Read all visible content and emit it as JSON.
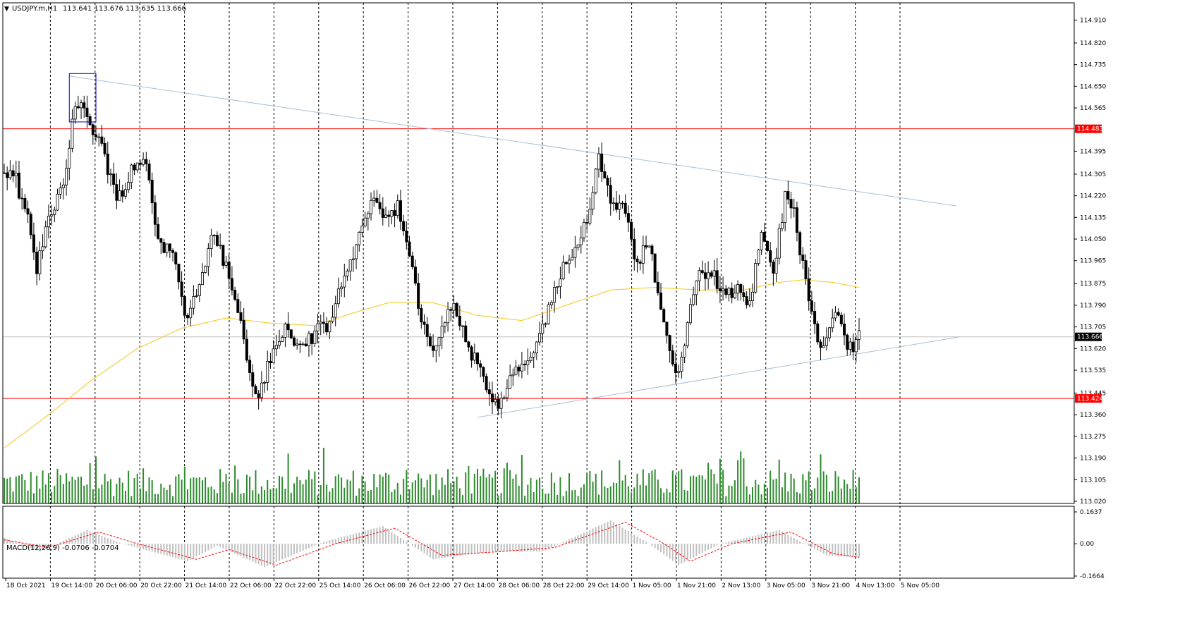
{
  "header": {
    "symbol": "USDJPY.m,H1",
    "ohlc": "113.641 113.676 113.635 113.666"
  },
  "macd_panel": {
    "label": "MACD(12,26,9) -0.0706 -0.0704",
    "ticks": [
      "0.1637",
      "0.00",
      "-0.1664"
    ]
  },
  "colors": {
    "background": "#ffffff",
    "candle": "#000000",
    "moving_average": "#f5c518",
    "horizontal_level": "#ff0000",
    "trendline": "#a9bfd6",
    "volume": "#2e8b2e",
    "macd_histogram": "#c0c0c0",
    "macd_signal": "#ff0000",
    "highlight_box": "#0000cc"
  },
  "chart_data": {
    "type": "candlestick",
    "symbol": "USDJPY.m",
    "timeframe": "H1",
    "title": "USDJPY.m,H1",
    "x_tick_labels": [
      "18 Oct 2021",
      "19 Oct 14:00",
      "20 Oct 06:00",
      "20 Oct 22:00",
      "21 Oct 14:00",
      "22 Oct 06:00",
      "22 Oct 22:00",
      "25 Oct 14:00",
      "26 Oct 06:00",
      "26 Oct 22:00",
      "27 Oct 14:00",
      "28 Oct 06:00",
      "28 Oct 22:00",
      "29 Oct 14:00",
      "1 Nov 05:00",
      "1 Nov 21:00",
      "2 Nov 13:00",
      "3 Nov 05:00",
      "3 Nov 21:00",
      "4 Nov 13:00",
      "5 Nov 05:00"
    ],
    "y_tick_labels": [
      "114.910",
      "114.820",
      "114.735",
      "114.650",
      "114.565",
      "114.483",
      "114.395",
      "114.305",
      "114.220",
      "114.135",
      "114.050",
      "113.965",
      "113.875",
      "113.790",
      "113.705",
      "113.666",
      "113.620",
      "113.535",
      "113.445",
      "113.424",
      "113.360",
      "113.275",
      "113.190",
      "113.105",
      "113.020"
    ],
    "ylim": [
      113.02,
      114.95
    ],
    "horizontal_levels": [
      114.483,
      113.424
    ],
    "current_price": 113.666,
    "trendlines": [
      {
        "from": {
          "bar": 22,
          "price": 114.69
        },
        "to": {
          "bar": 322,
          "price": 114.18
        }
      },
      {
        "from": {
          "bar": 160,
          "price": 113.35
        },
        "to": {
          "bar": 323,
          "price": 113.666
        }
      }
    ],
    "highlight_box": {
      "bar_from": 22,
      "bar_to": 31,
      "price_from": 114.51,
      "price_to": 114.7
    },
    "bars": 290,
    "waypoints": [
      {
        "bar": 0,
        "price": 114.31
      },
      {
        "bar": 4,
        "price": 114.28
      },
      {
        "bar": 8,
        "price": 114.12
      },
      {
        "bar": 11,
        "price": 113.92
      },
      {
        "bar": 14,
        "price": 114.1
      },
      {
        "bar": 20,
        "price": 114.28
      },
      {
        "bar": 24,
        "price": 114.58
      },
      {
        "bar": 27,
        "price": 114.55
      },
      {
        "bar": 33,
        "price": 114.42
      },
      {
        "bar": 38,
        "price": 114.2
      },
      {
        "bar": 43,
        "price": 114.32
      },
      {
        "bar": 48,
        "price": 114.36
      },
      {
        "bar": 52,
        "price": 114.05
      },
      {
        "bar": 57,
        "price": 113.98
      },
      {
        "bar": 62,
        "price": 113.72
      },
      {
        "bar": 66,
        "price": 113.9
      },
      {
        "bar": 71,
        "price": 114.08
      },
      {
        "bar": 76,
        "price": 113.9
      },
      {
        "bar": 80,
        "price": 113.72
      },
      {
        "bar": 83,
        "price": 113.52
      },
      {
        "bar": 86,
        "price": 113.43
      },
      {
        "bar": 90,
        "price": 113.58
      },
      {
        "bar": 95,
        "price": 113.7
      },
      {
        "bar": 100,
        "price": 113.62
      },
      {
        "bar": 105,
        "price": 113.68
      },
      {
        "bar": 110,
        "price": 113.72
      },
      {
        "bar": 115,
        "price": 113.9
      },
      {
        "bar": 120,
        "price": 114.05
      },
      {
        "bar": 124,
        "price": 114.22
      },
      {
        "bar": 128,
        "price": 114.14
      },
      {
        "bar": 133,
        "price": 114.18
      },
      {
        "bar": 137,
        "price": 113.98
      },
      {
        "bar": 141,
        "price": 113.72
      },
      {
        "bar": 145,
        "price": 113.62
      },
      {
        "bar": 148,
        "price": 113.7
      },
      {
        "bar": 152,
        "price": 113.8
      },
      {
        "bar": 156,
        "price": 113.65
      },
      {
        "bar": 160,
        "price": 113.55
      },
      {
        "bar": 164,
        "price": 113.45
      },
      {
        "bar": 167,
        "price": 113.37
      },
      {
        "bar": 171,
        "price": 113.5
      },
      {
        "bar": 175,
        "price": 113.55
      },
      {
        "bar": 180,
        "price": 113.62
      },
      {
        "bar": 185,
        "price": 113.8
      },
      {
        "bar": 190,
        "price": 113.98
      },
      {
        "bar": 194,
        "price": 114.02
      },
      {
        "bar": 198,
        "price": 114.18
      },
      {
        "bar": 201,
        "price": 114.38
      },
      {
        "bar": 205,
        "price": 114.22
      },
      {
        "bar": 210,
        "price": 114.15
      },
      {
        "bar": 214,
        "price": 113.95
      },
      {
        "bar": 218,
        "price": 114.05
      },
      {
        "bar": 222,
        "price": 113.75
      },
      {
        "bar": 225,
        "price": 113.62
      },
      {
        "bar": 228,
        "price": 113.52
      },
      {
        "bar": 232,
        "price": 113.8
      },
      {
        "bar": 236,
        "price": 113.93
      },
      {
        "bar": 240,
        "price": 113.9
      },
      {
        "bar": 244,
        "price": 113.82
      },
      {
        "bar": 248,
        "price": 113.86
      },
      {
        "bar": 252,
        "price": 113.8
      },
      {
        "bar": 256,
        "price": 114.05
      },
      {
        "bar": 260,
        "price": 113.92
      },
      {
        "bar": 264,
        "price": 114.22
      },
      {
        "bar": 267,
        "price": 114.15
      },
      {
        "bar": 270,
        "price": 113.95
      },
      {
        "bar": 273,
        "price": 113.75
      },
      {
        "bar": 276,
        "price": 113.6
      },
      {
        "bar": 279,
        "price": 113.68
      },
      {
        "bar": 282,
        "price": 113.78
      },
      {
        "bar": 285,
        "price": 113.6
      },
      {
        "bar": 289,
        "price": 113.666
      }
    ],
    "ma_waypoints": [
      {
        "bar": 0,
        "price": 113.23
      },
      {
        "bar": 15,
        "price": 113.36
      },
      {
        "bar": 30,
        "price": 113.5
      },
      {
        "bar": 45,
        "price": 113.62
      },
      {
        "bar": 60,
        "price": 113.7
      },
      {
        "bar": 75,
        "price": 113.74
      },
      {
        "bar": 90,
        "price": 113.72
      },
      {
        "bar": 105,
        "price": 113.71
      },
      {
        "bar": 118,
        "price": 113.76
      },
      {
        "bar": 130,
        "price": 113.8
      },
      {
        "bar": 145,
        "price": 113.8
      },
      {
        "bar": 160,
        "price": 113.75
      },
      {
        "bar": 175,
        "price": 113.73
      },
      {
        "bar": 190,
        "price": 113.79
      },
      {
        "bar": 205,
        "price": 113.85
      },
      {
        "bar": 220,
        "price": 113.86
      },
      {
        "bar": 235,
        "price": 113.85
      },
      {
        "bar": 250,
        "price": 113.85
      },
      {
        "bar": 262,
        "price": 113.88
      },
      {
        "bar": 270,
        "price": 113.89
      },
      {
        "bar": 280,
        "price": 113.88
      },
      {
        "bar": 289,
        "price": 113.86
      }
    ],
    "macd": {
      "ylim": [
        -0.1664,
        0.1637
      ],
      "histogram_waypoints": [
        {
          "bar": 0,
          "value": 0.03
        },
        {
          "bar": 12,
          "value": -0.04
        },
        {
          "bar": 28,
          "value": 0.07
        },
        {
          "bar": 40,
          "value": 0.0
        },
        {
          "bar": 62,
          "value": -0.09
        },
        {
          "bar": 72,
          "value": -0.01
        },
        {
          "bar": 88,
          "value": -0.12
        },
        {
          "bar": 108,
          "value": 0.01
        },
        {
          "bar": 128,
          "value": 0.09
        },
        {
          "bar": 145,
          "value": -0.08
        },
        {
          "bar": 165,
          "value": -0.04
        },
        {
          "bar": 182,
          "value": -0.04
        },
        {
          "bar": 205,
          "value": 0.12
        },
        {
          "bar": 218,
          "value": 0.0
        },
        {
          "bar": 228,
          "value": -0.11
        },
        {
          "bar": 242,
          "value": 0.0
        },
        {
          "bar": 262,
          "value": 0.07
        },
        {
          "bar": 278,
          "value": -0.06
        },
        {
          "bar": 289,
          "value": -0.0706
        }
      ],
      "signal_waypoints": [
        {
          "bar": 0,
          "value": 0.02
        },
        {
          "bar": 15,
          "value": -0.02
        },
        {
          "bar": 32,
          "value": 0.06
        },
        {
          "bar": 45,
          "value": 0.0
        },
        {
          "bar": 65,
          "value": -0.08
        },
        {
          "bar": 76,
          "value": -0.03
        },
        {
          "bar": 92,
          "value": -0.11
        },
        {
          "bar": 112,
          "value": 0.0
        },
        {
          "bar": 132,
          "value": 0.08
        },
        {
          "bar": 148,
          "value": -0.06
        },
        {
          "bar": 168,
          "value": -0.04
        },
        {
          "bar": 186,
          "value": -0.02
        },
        {
          "bar": 210,
          "value": 0.11
        },
        {
          "bar": 222,
          "value": 0.01
        },
        {
          "bar": 232,
          "value": -0.09
        },
        {
          "bar": 246,
          "value": 0.0
        },
        {
          "bar": 266,
          "value": 0.06
        },
        {
          "bar": 280,
          "value": -0.05
        },
        {
          "bar": 289,
          "value": -0.0704
        }
      ]
    }
  }
}
